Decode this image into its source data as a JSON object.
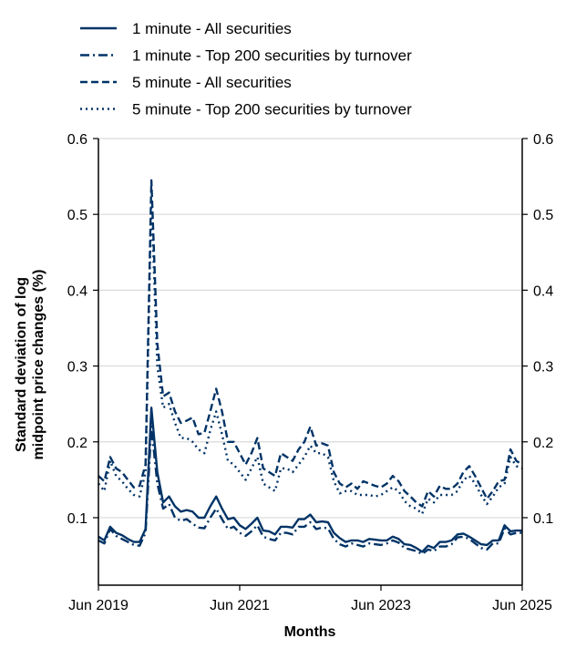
{
  "chart_data": {
    "type": "line",
    "title": "",
    "xlabel": "Months",
    "ylabel": "Standard deviation of log midpoint price changes (%)",
    "ylim": [
      0.011,
      0.6
    ],
    "y_ticks": [
      "0.1",
      "0.2",
      "0.3",
      "0.4",
      "0.5",
      "0.6"
    ],
    "x_ticks": [
      "Jun 2019",
      "Jun 2021",
      "Jun 2023",
      "Jun 2025"
    ],
    "grid": "horizontal",
    "legend_placement": "top",
    "color": "#003366",
    "x": [
      "2019-06",
      "2019-07",
      "2019-08",
      "2019-09",
      "2019-10",
      "2019-11",
      "2019-12",
      "2020-01",
      "2020-02",
      "2020-03",
      "2020-04",
      "2020-05",
      "2020-06",
      "2020-07",
      "2020-08",
      "2020-09",
      "2020-10",
      "2020-11",
      "2020-12",
      "2021-01",
      "2021-02",
      "2021-03",
      "2021-04",
      "2021-05",
      "2021-06",
      "2021-07",
      "2021-08",
      "2021-09",
      "2021-10",
      "2021-11",
      "2021-12",
      "2022-01",
      "2022-02",
      "2022-03",
      "2022-04",
      "2022-05",
      "2022-06",
      "2022-07",
      "2022-08",
      "2022-09",
      "2022-10",
      "2022-11",
      "2022-12",
      "2023-01",
      "2023-02",
      "2023-03",
      "2023-04",
      "2023-05",
      "2023-06",
      "2023-07",
      "2023-08",
      "2023-09",
      "2023-10",
      "2023-11",
      "2023-12",
      "2024-01",
      "2024-02",
      "2024-03",
      "2024-04",
      "2024-05",
      "2024-06",
      "2024-07",
      "2024-08",
      "2024-09",
      "2024-10",
      "2024-11",
      "2024-12",
      "2025-01",
      "2025-02",
      "2025-03",
      "2025-04",
      "2025-05",
      "2025-06"
    ],
    "series": [
      {
        "name": "1 minute - All securities",
        "style": "solid",
        "values": [
          0.075,
          0.07,
          0.088,
          0.08,
          0.077,
          0.072,
          0.068,
          0.068,
          0.085,
          0.245,
          0.16,
          0.12,
          0.128,
          0.115,
          0.108,
          0.11,
          0.108,
          0.1,
          0.1,
          0.115,
          0.128,
          0.112,
          0.098,
          0.1,
          0.09,
          0.085,
          0.092,
          0.1,
          0.083,
          0.082,
          0.078,
          0.088,
          0.088,
          0.087,
          0.098,
          0.098,
          0.104,
          0.094,
          0.095,
          0.094,
          0.08,
          0.073,
          0.068,
          0.07,
          0.07,
          0.068,
          0.072,
          0.071,
          0.07,
          0.07,
          0.075,
          0.072,
          0.065,
          0.064,
          0.06,
          0.055,
          0.063,
          0.06,
          0.068,
          0.068,
          0.07,
          0.078,
          0.079,
          0.075,
          0.07,
          0.065,
          0.064,
          0.07,
          0.07,
          0.09,
          0.082,
          0.083,
          0.083
        ]
      },
      {
        "name": "1 minute - Top 200 securities by turnover",
        "style": "dashdot",
        "values": [
          0.07,
          0.066,
          0.085,
          0.076,
          0.072,
          0.068,
          0.064,
          0.063,
          0.08,
          0.22,
          0.145,
          0.112,
          0.118,
          0.1,
          0.096,
          0.098,
          0.092,
          0.087,
          0.086,
          0.1,
          0.112,
          0.098,
          0.085,
          0.088,
          0.08,
          0.076,
          0.082,
          0.09,
          0.075,
          0.072,
          0.07,
          0.08,
          0.08,
          0.078,
          0.088,
          0.088,
          0.094,
          0.085,
          0.087,
          0.086,
          0.072,
          0.065,
          0.062,
          0.066,
          0.064,
          0.062,
          0.066,
          0.065,
          0.064,
          0.066,
          0.07,
          0.067,
          0.06,
          0.058,
          0.056,
          0.052,
          0.058,
          0.056,
          0.062,
          0.062,
          0.065,
          0.074,
          0.075,
          0.072,
          0.066,
          0.06,
          0.058,
          0.066,
          0.066,
          0.086,
          0.078,
          0.08,
          0.08
        ]
      },
      {
        "name": "5 minute - All securities",
        "style": "dashed",
        "values": [
          0.155,
          0.148,
          0.18,
          0.165,
          0.16,
          0.15,
          0.14,
          0.142,
          0.17,
          0.545,
          0.33,
          0.26,
          0.265,
          0.24,
          0.225,
          0.228,
          0.232,
          0.21,
          0.212,
          0.24,
          0.27,
          0.24,
          0.2,
          0.2,
          0.185,
          0.17,
          0.185,
          0.205,
          0.165,
          0.16,
          0.155,
          0.185,
          0.18,
          0.175,
          0.19,
          0.2,
          0.22,
          0.195,
          0.198,
          0.195,
          0.16,
          0.145,
          0.14,
          0.145,
          0.138,
          0.148,
          0.145,
          0.142,
          0.14,
          0.145,
          0.155,
          0.148,
          0.135,
          0.128,
          0.12,
          0.115,
          0.135,
          0.128,
          0.142,
          0.138,
          0.138,
          0.145,
          0.16,
          0.168,
          0.155,
          0.14,
          0.125,
          0.135,
          0.148,
          0.15,
          0.19,
          0.175,
          0.17
        ]
      },
      {
        "name": "5 minute - Top 200 securities by turnover",
        "style": "dotted",
        "values": [
          0.145,
          0.135,
          0.175,
          0.155,
          0.148,
          0.138,
          0.13,
          0.128,
          0.16,
          0.52,
          0.3,
          0.245,
          0.25,
          0.225,
          0.205,
          0.205,
          0.2,
          0.19,
          0.185,
          0.215,
          0.24,
          0.21,
          0.175,
          0.17,
          0.16,
          0.15,
          0.165,
          0.18,
          0.145,
          0.14,
          0.135,
          0.165,
          0.165,
          0.16,
          0.17,
          0.18,
          0.195,
          0.185,
          0.185,
          0.18,
          0.148,
          0.132,
          0.135,
          0.135,
          0.13,
          0.13,
          0.13,
          0.128,
          0.13,
          0.135,
          0.14,
          0.135,
          0.122,
          0.115,
          0.112,
          0.105,
          0.125,
          0.12,
          0.13,
          0.13,
          0.13,
          0.135,
          0.15,
          0.155,
          0.145,
          0.13,
          0.118,
          0.128,
          0.14,
          0.145,
          0.18,
          0.168,
          0.165
        ]
      }
    ]
  }
}
